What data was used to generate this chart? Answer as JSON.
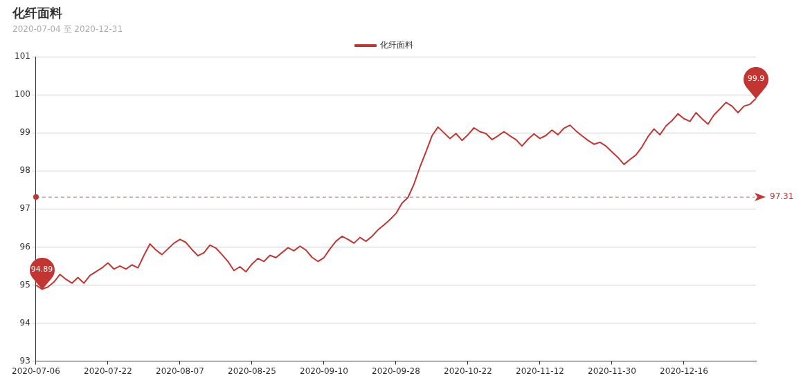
{
  "chart_data": {
    "type": "line",
    "title": "化纤面料",
    "subtitle": "2020-07-04 至 2020-12-31",
    "categories": [
      "2020-07-06",
      null,
      null,
      null,
      null,
      null,
      null,
      null,
      null,
      null,
      null,
      null,
      "2020-07-22",
      null,
      null,
      null,
      null,
      null,
      null,
      null,
      null,
      null,
      null,
      null,
      "2020-08-07",
      null,
      null,
      null,
      null,
      null,
      null,
      null,
      null,
      null,
      null,
      null,
      "2020-08-25",
      null,
      null,
      null,
      null,
      null,
      null,
      null,
      null,
      null,
      null,
      null,
      "2020-09-10",
      null,
      null,
      null,
      null,
      null,
      null,
      null,
      null,
      null,
      null,
      null,
      "2020-09-28",
      null,
      null,
      null,
      null,
      null,
      null,
      null,
      null,
      null,
      null,
      null,
      "2020-10-22",
      null,
      null,
      null,
      null,
      null,
      null,
      null,
      null,
      null,
      null,
      null,
      "2020-11-12",
      null,
      null,
      null,
      null,
      null,
      null,
      null,
      null,
      null,
      null,
      null,
      "2020-11-30",
      null,
      null,
      null,
      null,
      null,
      null,
      null,
      null,
      null,
      null,
      null,
      "2020-12-16",
      null,
      null,
      null,
      null,
      null,
      null,
      null,
      null,
      null,
      null,
      null,
      null
    ],
    "series": [
      {
        "name": "化纤面料",
        "color": "#c23531",
        "values": [
          95.0,
          94.89,
          94.95,
          95.08,
          95.28,
          95.15,
          95.05,
          95.2,
          95.05,
          95.25,
          95.35,
          95.45,
          95.58,
          95.42,
          95.5,
          95.42,
          95.53,
          95.45,
          95.78,
          96.08,
          95.92,
          95.8,
          95.95,
          96.1,
          96.2,
          96.12,
          95.93,
          95.77,
          95.85,
          96.05,
          95.97,
          95.8,
          95.62,
          95.38,
          95.48,
          95.35,
          95.55,
          95.7,
          95.62,
          95.78,
          95.72,
          95.85,
          95.98,
          95.9,
          96.02,
          95.92,
          95.73,
          95.62,
          95.72,
          95.95,
          96.15,
          96.28,
          96.2,
          96.1,
          96.25,
          96.15,
          96.28,
          96.45,
          96.58,
          96.72,
          96.88,
          97.15,
          97.3,
          97.65,
          98.1,
          98.5,
          98.92,
          99.15,
          99.0,
          98.85,
          98.98,
          98.8,
          98.95,
          99.13,
          99.03,
          98.98,
          98.82,
          98.92,
          99.03,
          98.92,
          98.82,
          98.65,
          98.83,
          98.97,
          98.85,
          98.93,
          99.07,
          98.95,
          99.12,
          99.2,
          99.05,
          98.92,
          98.8,
          98.7,
          98.75,
          98.65,
          98.5,
          98.35,
          98.17,
          98.3,
          98.42,
          98.63,
          98.9,
          99.1,
          98.95,
          99.18,
          99.32,
          99.5,
          99.37,
          99.3,
          99.53,
          99.37,
          99.23,
          99.47,
          99.63,
          99.8,
          99.7,
          99.53,
          99.7,
          99.75,
          99.9
        ]
      }
    ],
    "ylim": [
      93,
      101
    ],
    "yticks": [
      93,
      94,
      95,
      96,
      97,
      98,
      99,
      100,
      101
    ],
    "grid": "y",
    "legend": "top",
    "marker": "none",
    "line_style": "solid",
    "ref_lines": [
      {
        "axis": "y",
        "value": 97.31,
        "label": "97.31",
        "color": "#c23531",
        "line_style": "dashed"
      }
    ],
    "annotations": [
      {
        "text": "99.9",
        "y": 99.9
      },
      {
        "text": "94.89",
        "y": 94.89
      }
    ]
  }
}
